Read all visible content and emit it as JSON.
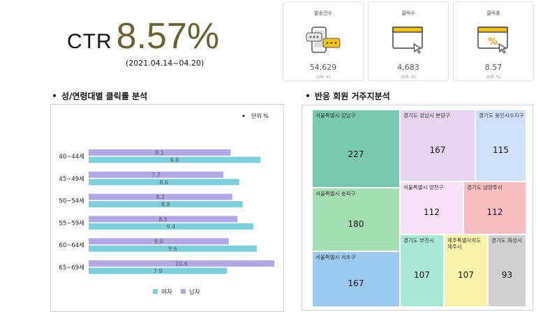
{
  "header": {
    "ctr_label": "CTR",
    "ctr_value": "8.57%",
    "period": "(2021.04.14~04.20)"
  },
  "cards": [
    {
      "title": "발송건수",
      "icon": "smartphone-chat-icon",
      "value": "54,629",
      "unit": "(단위: 수)"
    },
    {
      "title": "클릭수",
      "icon": "browser-click-icon",
      "value": "4,683",
      "unit": "(단위: 수)"
    },
    {
      "title": "클릭률",
      "icon": "browser-percent-click-icon",
      "value": "8.57",
      "unit": "(단위: %)"
    }
  ],
  "sections": {
    "bar_title": "성/연령대별 클릭률 분석",
    "tree_title": "반응 회원 거주지분석"
  },
  "colors": {
    "female": "#7ecfdc",
    "male": "#b3a8e6",
    "ctr_accent": "#6b6233",
    "icon_yellow": "#f3c21a"
  },
  "chart_data": [
    {
      "type": "bar",
      "orientation": "horizontal",
      "unit_note": "단위 %",
      "categories": [
        "40~44세",
        "45~49세",
        "50~54세",
        "55~59세",
        "60~64세",
        "65~69세"
      ],
      "series": [
        {
          "name": "남자",
          "color": "#b3a8e6",
          "values": [
            8.1,
            7.7,
            8.2,
            8.5,
            8.0,
            10.6
          ]
        },
        {
          "name": "여자",
          "color": "#7ecfdc",
          "values": [
            9.8,
            8.6,
            8.8,
            9.4,
            9.6,
            7.9
          ]
        }
      ],
      "xlim": [
        0,
        10.6
      ],
      "grid": false,
      "legend_position": "bottom",
      "legend": [
        "여자",
        "남자"
      ]
    },
    {
      "type": "treemap",
      "items": [
        {
          "name": "서울특별시 강남구",
          "value": 227,
          "color": "#79c9b0"
        },
        {
          "name": "경기도 성남시 분당구",
          "value": 167,
          "color": "#e5d5f3"
        },
        {
          "name": "경기도 용인시수지구",
          "value": 115,
          "color": "#cfe0fb"
        },
        {
          "name": "서울특별시 송파구",
          "value": 180,
          "color": "#a4dfb1"
        },
        {
          "name": "서울특별시 양천구",
          "value": 112,
          "color": "#f9e2f6"
        },
        {
          "name": "경기도 남양주시",
          "value": 112,
          "color": "#f8bdbe"
        },
        {
          "name": "서울특별시 서초구",
          "value": 167,
          "color": "#9cc9f0"
        },
        {
          "name": "경기도 부천시",
          "value": 107,
          "color": "#a9e8d6"
        },
        {
          "name": "제주특별자치도 제주시",
          "value": 107,
          "color": "#fbf3a9"
        },
        {
          "name": "경기도 화성시",
          "value": 93,
          "color": "#cfd0d0"
        }
      ]
    }
  ]
}
